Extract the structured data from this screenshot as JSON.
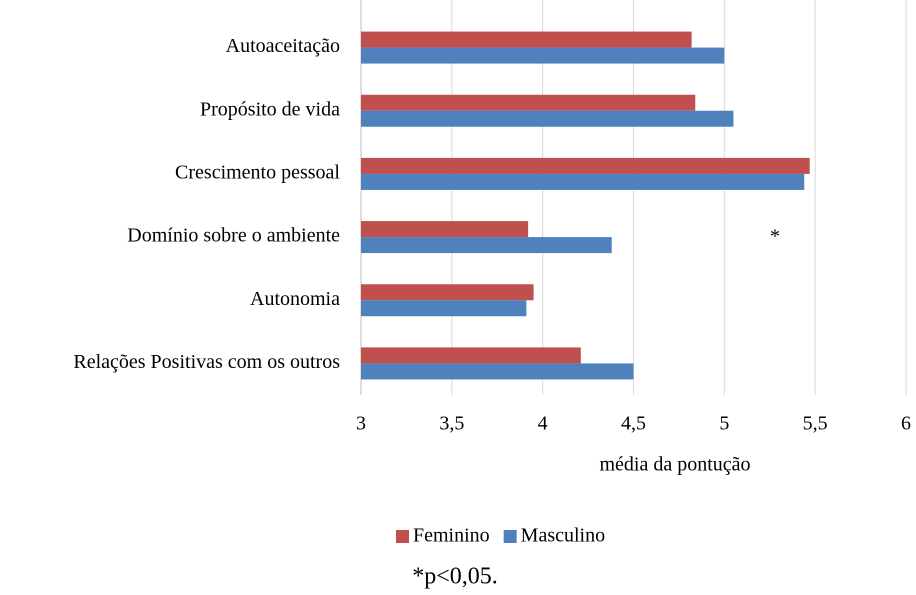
{
  "chart_data": {
    "type": "hbar",
    "categories": [
      "Autoaceitação",
      "Propósito de vida",
      "Crescimento pessoal",
      "Domínio sobre o ambiente",
      "Autonomia",
      "Relações Positivas com os outros"
    ],
    "series": [
      {
        "name": "Feminino",
        "color": "#c0504d",
        "values": [
          4.82,
          4.84,
          5.47,
          3.92,
          3.95,
          4.21
        ]
      },
      {
        "name": "Masculino",
        "color": "#4f81bd",
        "values": [
          5.0,
          5.05,
          5.44,
          4.38,
          3.91,
          4.5
        ]
      }
    ],
    "xlim": [
      3,
      6
    ],
    "xticks": [
      3,
      {
        "value": 3.5,
        "label": "3,5"
      },
      4,
      {
        "value": 4.5,
        "label": "4,5"
      },
      5,
      {
        "value": 5.5,
        "label": "5,5"
      },
      6
    ],
    "x_label": "média da pontução",
    "annotation": "*",
    "note": "*p<0,05.",
    "grid": true,
    "legend": "bottom"
  }
}
